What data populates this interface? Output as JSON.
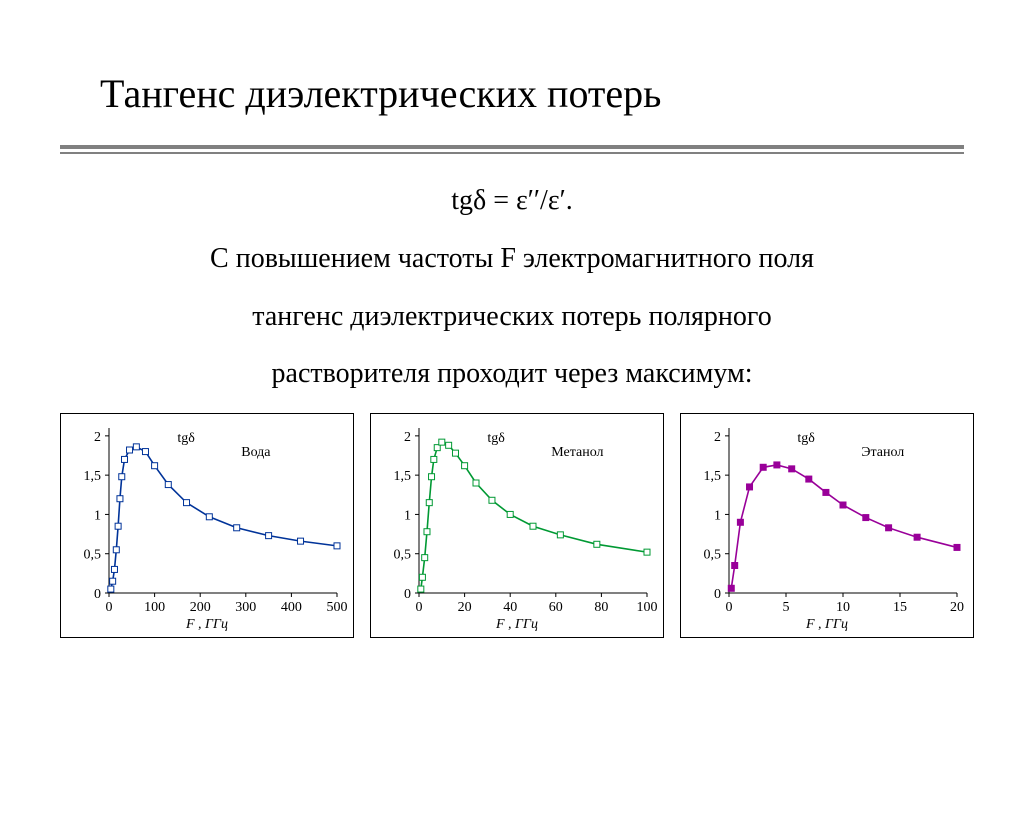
{
  "title": "Тангенс диэлектрических потерь",
  "formula": "tgδ = ε′′/ε′.",
  "body_line1": "С повышением частоты F электромагнитного поля",
  "body_line2": "тангенс диэлектрических потерь полярного",
  "body_line3": "растворителя проходит через максимум:",
  "chart_common": {
    "yticks": [
      0,
      0.5,
      1,
      1.5,
      2
    ],
    "ytick_labels": [
      "0",
      "0,5",
      "1",
      "1,5",
      "2"
    ],
    "y_label_inside": "tgδ",
    "tick_font_size": 14,
    "grid_color": "#000000",
    "background_color": "#ffffff",
    "axis_label_fontstyle": "italic"
  },
  "charts": [
    {
      "name": "water",
      "legend": "Вода",
      "color": "#003399",
      "marker_fill": "#ffffff",
      "marker_stroke": "#003399",
      "marker_size": 3,
      "line_width": 1.6,
      "xlabel": "F , ГГц",
      "xticks": [
        0,
        100,
        200,
        300,
        400,
        500
      ],
      "xtick_labels": [
        "0",
        "100",
        "200",
        "300",
        "400",
        "500"
      ],
      "xlim": [
        0,
        500
      ],
      "ylim": [
        0,
        2.1
      ],
      "data": [
        [
          4,
          0.05
        ],
        [
          8,
          0.15
        ],
        [
          12,
          0.3
        ],
        [
          16,
          0.55
        ],
        [
          20,
          0.85
        ],
        [
          24,
          1.2
        ],
        [
          28,
          1.48
        ],
        [
          34,
          1.7
        ],
        [
          45,
          1.82
        ],
        [
          60,
          1.86
        ],
        [
          80,
          1.8
        ],
        [
          100,
          1.62
        ],
        [
          130,
          1.38
        ],
        [
          170,
          1.15
        ],
        [
          220,
          0.97
        ],
        [
          280,
          0.83
        ],
        [
          350,
          0.73
        ],
        [
          420,
          0.66
        ],
        [
          500,
          0.6
        ]
      ]
    },
    {
      "name": "methanol",
      "legend": "Метанол",
      "color": "#009933",
      "marker_fill": "#ffffff",
      "marker_stroke": "#009933",
      "marker_size": 3,
      "line_width": 1.6,
      "xlabel": "F , ГГц",
      "xticks": [
        0,
        20,
        40,
        60,
        80,
        100
      ],
      "xtick_labels": [
        "0",
        "20",
        "40",
        "60",
        "80",
        "100"
      ],
      "xlim": [
        0,
        100
      ],
      "ylim": [
        0,
        2.1
      ],
      "data": [
        [
          0.8,
          0.05
        ],
        [
          1.5,
          0.2
        ],
        [
          2.5,
          0.45
        ],
        [
          3.5,
          0.78
        ],
        [
          4.5,
          1.15
        ],
        [
          5.5,
          1.48
        ],
        [
          6.5,
          1.7
        ],
        [
          8,
          1.85
        ],
        [
          10,
          1.92
        ],
        [
          13,
          1.88
        ],
        [
          16,
          1.78
        ],
        [
          20,
          1.62
        ],
        [
          25,
          1.4
        ],
        [
          32,
          1.18
        ],
        [
          40,
          1.0
        ],
        [
          50,
          0.85
        ],
        [
          62,
          0.74
        ],
        [
          78,
          0.62
        ],
        [
          100,
          0.52
        ]
      ]
    },
    {
      "name": "ethanol",
      "legend": "Этанол",
      "color": "#990099",
      "marker_fill": "#990099",
      "marker_stroke": "#990099",
      "marker_size": 3,
      "line_width": 1.6,
      "xlabel": "F , ГГц",
      "xticks": [
        0,
        5,
        10,
        15,
        20
      ],
      "xtick_labels": [
        "0",
        "5",
        "10",
        "15",
        "20"
      ],
      "xlim": [
        0,
        20
      ],
      "ylim": [
        0,
        2.1
      ],
      "data": [
        [
          0.2,
          0.06
        ],
        [
          0.5,
          0.35
        ],
        [
          1.0,
          0.9
        ],
        [
          1.8,
          1.35
        ],
        [
          3.0,
          1.6
        ],
        [
          4.2,
          1.63
        ],
        [
          5.5,
          1.58
        ],
        [
          7.0,
          1.45
        ],
        [
          8.5,
          1.28
        ],
        [
          10.0,
          1.12
        ],
        [
          12.0,
          0.96
        ],
        [
          14.0,
          0.83
        ],
        [
          16.5,
          0.71
        ],
        [
          20.0,
          0.58
        ]
      ]
    }
  ]
}
